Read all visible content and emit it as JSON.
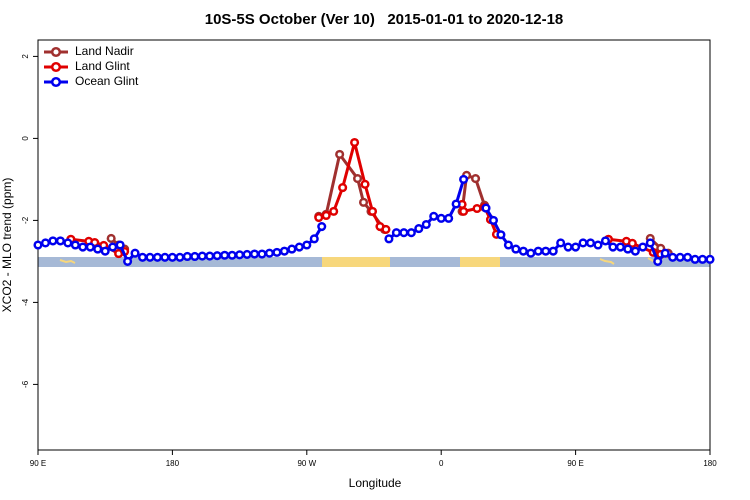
{
  "chart_data": {
    "type": "line",
    "title": "10S-5S October (Ver 10)   2015-01-01 to 2020-12-18",
    "x_label": "Longitude",
    "y_label": "XCO2 - MLO trend (ppm)",
    "xlim": [
      90,
      540
    ],
    "xticks": [
      {
        "value": 90,
        "label": "90 E"
      },
      {
        "value": 180,
        "label": "180"
      },
      {
        "value": 270,
        "label": "90 W"
      },
      {
        "value": 360,
        "label": "0"
      },
      {
        "value": 450,
        "label": "90 E"
      },
      {
        "value": 540,
        "label": "180"
      }
    ],
    "ylim": [
      -7.6,
      2.4
    ],
    "yticks": [
      2,
      0,
      -2,
      -4,
      -6
    ],
    "legend": "top-left",
    "series": [
      {
        "name": "Land Nadir",
        "color": "#a0302f",
        "x": [
          139,
          144,
          148,
          200,
          278,
          283,
          292,
          304,
          308,
          313,
          322,
          350,
          374,
          377,
          383,
          389,
          420,
          500,
          507,
          512
        ],
        "values": [
          -2.44,
          -2.6,
          -2.7,
          null,
          -1.9,
          -1.85,
          -0.39,
          -0.98,
          -1.56,
          -1.78,
          -2.22,
          null,
          -1.78,
          -0.9,
          -0.98,
          -1.63,
          null,
          -2.44,
          -2.68,
          -2.8
        ]
      },
      {
        "name": "Land Glint",
        "color": "#e00000",
        "x": [
          112,
          124,
          128,
          134,
          144,
          148,
          200,
          278,
          283,
          288,
          294,
          302,
          309,
          314,
          319,
          323,
          350,
          374,
          375,
          384,
          389,
          393,
          397,
          430,
          472,
          484,
          488,
          502,
          507
        ],
        "values": [
          -2.46,
          -2.51,
          -2.54,
          -2.61,
          -2.81,
          -2.76,
          null,
          -1.93,
          -1.88,
          -1.78,
          -1.2,
          -0.1,
          -1.12,
          -1.78,
          -2.15,
          -2.22,
          null,
          -1.61,
          -1.78,
          -1.71,
          -1.68,
          -1.98,
          -2.34,
          null,
          -2.46,
          -2.51,
          -2.56,
          -2.78,
          -2.83
        ]
      },
      {
        "name": "Ocean Glint",
        "color": "#0000ee",
        "x": [
          90,
          95,
          100,
          105,
          110,
          115,
          120,
          125,
          130,
          135,
          140,
          145,
          150,
          155,
          160,
          165,
          170,
          175,
          180,
          185,
          190,
          195,
          200,
          205,
          210,
          215,
          220,
          225,
          230,
          235,
          240,
          245,
          250,
          255,
          260,
          265,
          270,
          275,
          280,
          285,
          290,
          295,
          300,
          305,
          310,
          315,
          320,
          325,
          330,
          335,
          340,
          345,
          350,
          355,
          360,
          365,
          370,
          375,
          380,
          385,
          390,
          395,
          400,
          405,
          410,
          415,
          420,
          425,
          430,
          435,
          440,
          445,
          450,
          455,
          460,
          465,
          470,
          475,
          480,
          485,
          490,
          495,
          500,
          505,
          510,
          515,
          520,
          525,
          530,
          535,
          540
        ],
        "values": [
          -2.6,
          -2.55,
          -2.5,
          -2.5,
          -2.55,
          -2.6,
          -2.65,
          -2.65,
          -2.7,
          -2.75,
          -2.65,
          -2.6,
          -3.0,
          -2.8,
          -2.9,
          -2.9,
          -2.9,
          -2.9,
          -2.9,
          -2.9,
          -2.88,
          -2.88,
          -2.87,
          -2.87,
          -2.86,
          -2.85,
          -2.85,
          -2.84,
          -2.83,
          -2.82,
          -2.82,
          -2.8,
          -2.78,
          -2.75,
          -2.7,
          -2.65,
          -2.6,
          -2.45,
          -2.15,
          null,
          null,
          null,
          null,
          null,
          null,
          null,
          null,
          -2.45,
          -2.3,
          -2.3,
          -2.3,
          -2.2,
          -2.1,
          -1.9,
          -1.95,
          -1.95,
          -1.6,
          -1.0,
          null,
          null,
          -1.7,
          -2.0,
          -2.35,
          -2.6,
          -2.7,
          -2.75,
          -2.8,
          -2.75,
          -2.75,
          -2.75,
          -2.55,
          -2.65,
          -2.65,
          -2.55,
          -2.55,
          -2.6,
          -2.5,
          -2.65,
          -2.65,
          -2.7,
          -2.75,
          -2.65,
          -2.55,
          -3.0,
          -2.8,
          -2.9,
          -2.9,
          -2.9,
          -2.95,
          -2.95,
          -2.95
        ]
      }
    ]
  }
}
